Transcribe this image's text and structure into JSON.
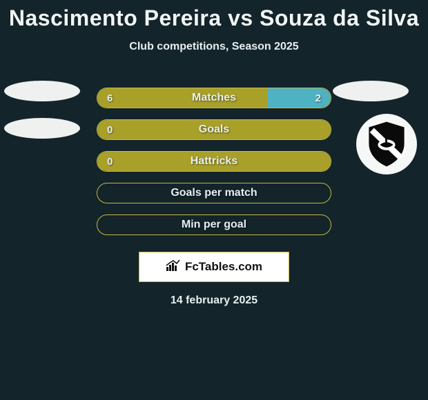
{
  "colors": {
    "background": "#13242b",
    "text": "#e8eff0",
    "title": "#f1f5f4",
    "olive": "#a9a02a",
    "olive_border": "#c3bb3f",
    "teal": "#4fb2c2",
    "white": "#ffffff",
    "ellipse": "#eef1ef",
    "badge_bg": "#f6f7f7",
    "shield": "#0a0a0a",
    "brand_border": "#c3bb3f",
    "brand_text": "#111111",
    "brand_bg": "#ffffff"
  },
  "title": "Nascimento Pereira vs Souza da Silva",
  "subtitle": "Club competitions, Season 2025",
  "date": "14 february 2025",
  "brand": "FcTables.com",
  "bar_track_width": 340,
  "rows": [
    {
      "label": "Matches",
      "left_value": "6",
      "right_value": "2",
      "left_pct": 0.73,
      "right_pct": 0.27,
      "left_fill": "olive",
      "right_fill": "teal",
      "left_ellipse": true,
      "right_ellipse": true,
      "badge_row": false
    },
    {
      "label": "Goals",
      "left_value": "0",
      "right_value": "",
      "left_pct": 1.0,
      "right_pct": 0.0,
      "left_fill": "olive",
      "right_fill": "teal",
      "left_ellipse": true,
      "right_ellipse": false,
      "badge_row": false
    },
    {
      "label": "Hattricks",
      "left_value": "0",
      "right_value": "",
      "left_pct": 1.0,
      "right_pct": 0.0,
      "left_fill": "olive",
      "right_fill": "teal",
      "left_ellipse": false,
      "right_ellipse": false,
      "badge_row": true
    },
    {
      "label": "Goals per match",
      "left_value": "",
      "right_value": "",
      "left_pct": 0.0,
      "right_pct": 0.0,
      "left_fill": "olive",
      "right_fill": "teal",
      "left_ellipse": false,
      "right_ellipse": false,
      "badge_row": false
    },
    {
      "label": "Min per goal",
      "left_value": "",
      "right_value": "",
      "left_pct": 0.0,
      "right_pct": 0.0,
      "left_fill": "olive",
      "right_fill": "teal",
      "left_ellipse": false,
      "right_ellipse": false,
      "badge_row": false
    }
  ]
}
